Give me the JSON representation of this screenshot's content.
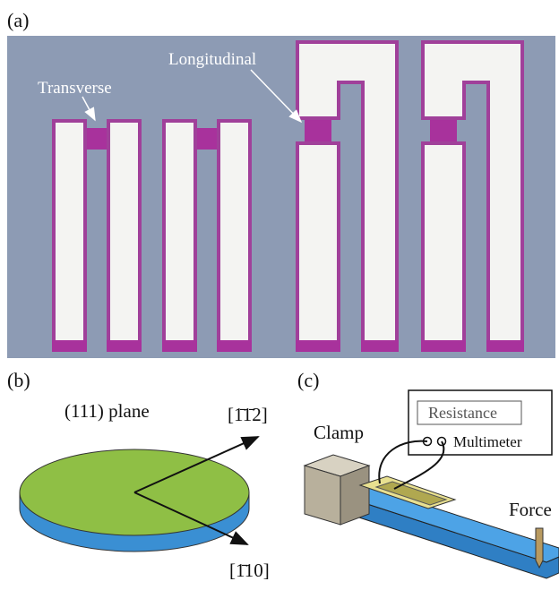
{
  "panels": [
    {
      "label": "(a)",
      "annotations": [
        "Transverse",
        "Longitudinal"
      ]
    },
    {
      "label": "(b)",
      "annotations": [
        "(111) plane",
        "[1̄1̄2]",
        "[1̄10]"
      ]
    },
    {
      "label": "(c)",
      "annotations": [
        "Clamp",
        "Resistance",
        "Multimeter",
        "Force"
      ]
    }
  ]
}
